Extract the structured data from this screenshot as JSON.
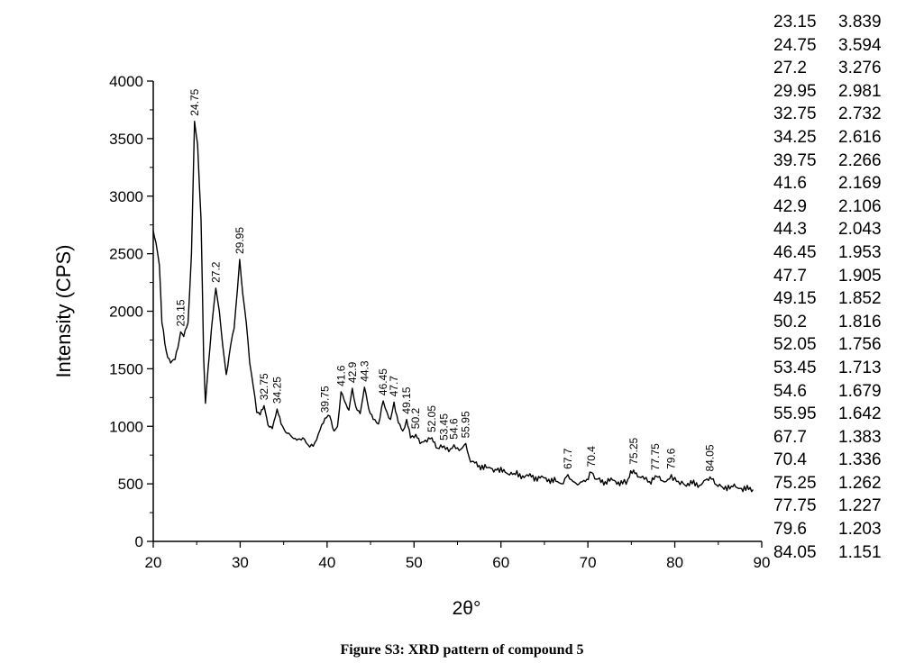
{
  "chart_data": {
    "type": "line",
    "title": "",
    "xlabel": "2θ°",
    "ylabel": "Intensity (CPS)",
    "xlim": [
      20,
      90
    ],
    "ylim": [
      0,
      4000
    ],
    "x_ticks": [
      "20",
      "30",
      "40",
      "50",
      "60",
      "70",
      "80",
      "90"
    ],
    "y_ticks": [
      "0",
      "500",
      "1000",
      "1500",
      "2000",
      "2500",
      "3000",
      "3500",
      "4000"
    ],
    "x_tick_values": [
      20,
      30,
      40,
      50,
      60,
      70,
      80,
      90
    ],
    "y_tick_values": [
      0,
      500,
      1000,
      1500,
      2000,
      2500,
      3000,
      3500,
      4000
    ],
    "grid": false,
    "series": [
      {
        "x": [
          20.0,
          20.3,
          20.7,
          21.0,
          21.5,
          22.0,
          22.5,
          23.0,
          23.15,
          23.5,
          24.0,
          24.4,
          24.75,
          25.1,
          25.5,
          25.8,
          26.0,
          26.3,
          26.7,
          27.2,
          27.6,
          28.0,
          28.4,
          28.9,
          29.3,
          29.7,
          29.95,
          30.3,
          30.7,
          31.1,
          31.5,
          31.9,
          32.3,
          32.75,
          33.2,
          33.7,
          34.25,
          34.7,
          35.2,
          35.8,
          36.5,
          37.2,
          38.0,
          38.6,
          39.2,
          39.75,
          40.3,
          40.8,
          41.2,
          41.6,
          42.0,
          42.5,
          42.9,
          43.3,
          43.8,
          44.3,
          44.8,
          45.3,
          45.9,
          46.45,
          46.9,
          47.3,
          47.7,
          48.2,
          48.7,
          49.15,
          49.6,
          50.2,
          50.7,
          51.3,
          52.05,
          52.7,
          53.45,
          54.0,
          54.6,
          55.2,
          55.95,
          56.5,
          57.5,
          58.5,
          59.5,
          60.5,
          61.5,
          62.5,
          63.5,
          64.5,
          65.5,
          66.5,
          67.0,
          67.7,
          68.3,
          69.0,
          69.7,
          70.4,
          71.0,
          72.0,
          73.0,
          74.0,
          74.6,
          75.25,
          75.9,
          76.5,
          77.1,
          77.75,
          78.4,
          79.0,
          79.6,
          80.2,
          81.0,
          82.0,
          83.0,
          84.05,
          84.8,
          85.5,
          86.5,
          87.5,
          88.5,
          89.0
        ],
        "y": [
          2700,
          2600,
          2400,
          1900,
          1650,
          1550,
          1580,
          1750,
          1820,
          1780,
          1900,
          2500,
          3650,
          3450,
          2800,
          1600,
          1200,
          1500,
          1850,
          2200,
          2000,
          1700,
          1450,
          1700,
          1850,
          2200,
          2450,
          2150,
          1900,
          1550,
          1350,
          1120,
          1100,
          1180,
          1010,
          980,
          1150,
          1020,
          950,
          920,
          880,
          900,
          820,
          860,
          970,
          1070,
          1090,
          960,
          1000,
          1300,
          1220,
          1140,
          1330,
          1170,
          1110,
          1340,
          1150,
          1060,
          1020,
          1220,
          1120,
          1060,
          1210,
          1030,
          960,
          1060,
          900,
          930,
          850,
          880,
          900,
          810,
          830,
          780,
          840,
          790,
          850,
          690,
          660,
          640,
          620,
          600,
          590,
          570,
          560,
          550,
          540,
          520,
          500,
          580,
          520,
          500,
          520,
          600,
          540,
          520,
          530,
          500,
          540,
          620,
          560,
          540,
          520,
          570,
          530,
          520,
          580,
          520,
          500,
          500,
          490,
          560,
          490,
          470,
          480,
          460,
          450,
          450
        ]
      }
    ],
    "annotations": [
      "23.15",
      "24.75",
      "27.2",
      "29.95",
      "32.75",
      "34.25",
      "39.75",
      "41.6",
      "42.9",
      "44.3",
      "46.45",
      "47.7",
      "49.15",
      "50.2",
      "52.05",
      "53.45",
      "54.6",
      "55.95",
      "67.7",
      "70.4",
      "75.25",
      "77.75",
      "79.6",
      "84.05"
    ],
    "annotation_x": [
      23.15,
      24.75,
      27.2,
      29.95,
      32.75,
      34.25,
      39.75,
      41.6,
      42.9,
      44.3,
      46.45,
      47.7,
      49.15,
      50.2,
      52.05,
      53.45,
      54.6,
      55.95,
      67.7,
      70.4,
      75.25,
      77.75,
      79.6,
      84.05
    ],
    "annotation_y": [
      1820,
      3650,
      2200,
      2450,
      1180,
      1150,
      1070,
      1300,
      1330,
      1340,
      1220,
      1210,
      1060,
      930,
      900,
      830,
      840,
      850,
      580,
      600,
      620,
      570,
      580,
      560
    ]
  },
  "peak_table": [
    [
      "23.15",
      "3.839"
    ],
    [
      "24.75",
      "3.594"
    ],
    [
      "27.2",
      "3.276"
    ],
    [
      "29.95",
      "2.981"
    ],
    [
      "32.75",
      "2.732"
    ],
    [
      "34.25",
      "2.616"
    ],
    [
      "39.75",
      "2.266"
    ],
    [
      "41.6",
      "2.169"
    ],
    [
      "42.9",
      "2.106"
    ],
    [
      "44.3",
      "2.043"
    ],
    [
      "46.45",
      "1.953"
    ],
    [
      "47.7",
      "1.905"
    ],
    [
      "49.15",
      "1.852"
    ],
    [
      "50.2",
      "1.816"
    ],
    [
      "52.05",
      "1.756"
    ],
    [
      "53.45",
      "1.713"
    ],
    [
      "54.6",
      "1.679"
    ],
    [
      "55.95",
      "1.642"
    ],
    [
      "67.7",
      "1.383"
    ],
    [
      "70.4",
      "1.336"
    ],
    [
      "75.25",
      "1.262"
    ],
    [
      "77.75",
      "1.227"
    ],
    [
      "79.6",
      "1.203"
    ],
    [
      "84.05",
      "1.151"
    ]
  ],
  "caption": "Figure S3: XRD pattern of compound 5",
  "colors": {
    "line": "#000000",
    "axis": "#000000",
    "background": "#ffffff"
  }
}
